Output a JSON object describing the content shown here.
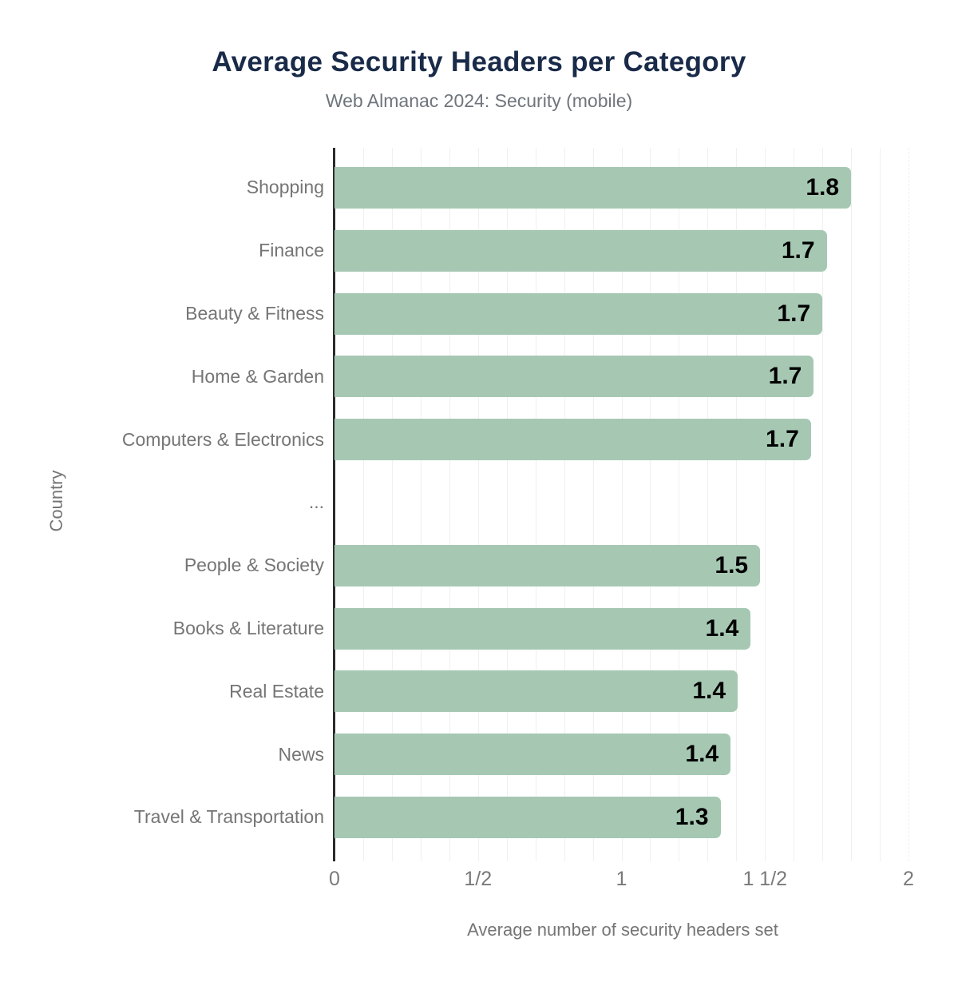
{
  "colors": {
    "background": "#ffffff",
    "bar": "#a6c8b3",
    "title": "#1a2b49",
    "subtitle": "#6e757c",
    "label": "#757575",
    "tick": "#7a7a7a",
    "value": "#000000",
    "axis": "#2b2b2b",
    "grid": "#f0f0f0"
  },
  "chart_data": {
    "type": "bar",
    "orientation": "horizontal",
    "title": "Average Security Headers per Category",
    "subtitle": "Web Almanac 2024: Security (mobile)",
    "xlabel": "Average number of security headers set",
    "ylabel": "Country",
    "xlim": [
      0,
      2
    ],
    "grid": "minor vertical gridlines",
    "grid_interval": 0.1,
    "legend": "none",
    "x_ticks": [
      {
        "value": 0,
        "label": "0"
      },
      {
        "value": 0.5,
        "label": "1/2"
      },
      {
        "value": 1,
        "label": "1"
      },
      {
        "value": 1.5,
        "label": "1 1/2"
      },
      {
        "value": 2,
        "label": "2"
      }
    ],
    "categories": [
      "Shopping",
      "Finance",
      "Beauty & Fitness",
      "Home & Garden",
      "Computers & Electronics",
      "...",
      "People & Society",
      "Books & Literature",
      "Real Estate",
      "News",
      "Travel & Transportation"
    ],
    "values": [
      1.8,
      1.7,
      1.7,
      1.7,
      1.7,
      null,
      1.5,
      1.4,
      1.4,
      1.4,
      1.3
    ],
    "rows": [
      {
        "label": "Shopping",
        "display": "1.8",
        "bar_length": 1.8
      },
      {
        "label": "Finance",
        "display": "1.7",
        "bar_length": 1.715
      },
      {
        "label": "Beauty & Fitness",
        "display": "1.7",
        "bar_length": 1.7
      },
      {
        "label": "Home & Garden",
        "display": "1.7",
        "bar_length": 1.67
      },
      {
        "label": "Computers & Electronics",
        "display": "1.7",
        "bar_length": 1.66
      },
      {
        "label": "...",
        "display": null,
        "bar_length": null
      },
      {
        "label": "People & Society",
        "display": "1.5",
        "bar_length": 1.483
      },
      {
        "label": "Books & Literature",
        "display": "1.4",
        "bar_length": 1.45
      },
      {
        "label": "Real Estate",
        "display": "1.4",
        "bar_length": 1.405
      },
      {
        "label": "News",
        "display": "1.4",
        "bar_length": 1.38
      },
      {
        "label": "Travel & Transportation",
        "display": "1.3",
        "bar_length": 1.345
      }
    ]
  }
}
